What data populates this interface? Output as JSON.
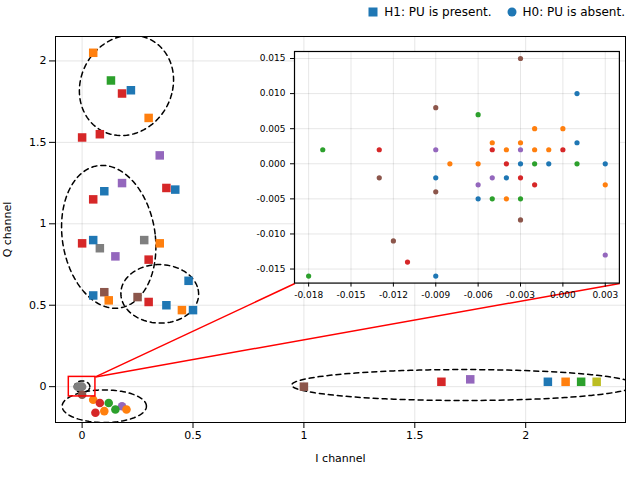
{
  "chart_data": [
    {
      "type": "scatter",
      "xlabel": "I channel",
      "ylabel": "Q channel",
      "xlim": [
        -0.12,
        2.45
      ],
      "ylim": [
        -0.22,
        2.15
      ],
      "xticks": [
        0,
        0.5,
        1,
        1.5,
        2
      ],
      "yticks": [
        0,
        0.5,
        1,
        1.5,
        2
      ],
      "grid": true,
      "legend": "upper right",
      "series": [
        {
          "name": "H1: PU is present.",
          "marker": "square",
          "color": "#1f77b4",
          "x": [
            0.05,
            0.13,
            0.18,
            0.22,
            0.3,
            0.35,
            0.38,
            0.42,
            0.48,
            0.5,
            0.28,
            0.35,
            0.3,
            0.25,
            0.3,
            0.38,
            0.45,
            0.05,
            0.1,
            0.18,
            0.08,
            0.15,
            0,
            0.05,
            0.05,
            0.1,
            0.12,
            0,
            0.08,
            1.62,
            1.75,
            2.1,
            2.18,
            2.25,
            2.32,
            1
          ],
          "values": [
            2.05,
            1.88,
            1.8,
            1.82,
            1.65,
            1.42,
            1.22,
            1.21,
            0.65,
            0.47,
            0.9,
            0.88,
            0.78,
            0.55,
            0.52,
            0.5,
            0.47,
            1.15,
            1.2,
            1.25,
            0.85,
            0.8,
            0.88,
            0.9,
            0.56,
            0.58,
            0.53,
            1.53,
            1.55,
            0.03,
            0.045,
            0.03,
            0.03,
            0.03,
            0.03,
            0
          ],
          "colors": [
            "#ff7f0e",
            "#2ca02c",
            "#d62728",
            "#1f77b4",
            "#ff7f0e",
            "#9467bd",
            "#d62728",
            "#1f77b4",
            "#1f77b4",
            "#1f77b4",
            "#7f7f7f",
            "#ff7f0e",
            "#d62728",
            "#8c564b",
            "#d62728",
            "#1f77b4",
            "#ff7f0e",
            "#d62728",
            "#1f77b4",
            "#9467bd",
            "#7f7f7f",
            "#9467bd",
            "#d62728",
            "#1f77b4",
            "#1f77b4",
            "#8c564b",
            "#ff7f0e",
            "#d62728",
            "#d62728",
            "#d62728",
            "#9467bd",
            "#1f77b4",
            "#ff7f0e",
            "#2ca02c",
            "#bcbd22",
            "#8c564b"
          ]
        },
        {
          "name": "H0: PU is absent.",
          "marker": "circle",
          "color": "#1f77b4",
          "x": [
            -0.02,
            -0.01,
            0,
            0.05,
            0.08,
            0.12,
            0.18,
            0,
            0.06,
            0.1,
            0.15,
            0.2
          ],
          "values": [
            0,
            0,
            0,
            -0.08,
            -0.1,
            -0.1,
            -0.12,
            -0.05,
            -0.16,
            -0.15,
            -0.14,
            -0.14
          ],
          "colors": [
            "#7f7f7f",
            "#7f7f7f",
            "#7f7f7f",
            "#ff7f0e",
            "#d62728",
            "#2ca02c",
            "#9467bd",
            "#8c564b",
            "#d62728",
            "#ff7f0e",
            "#2ca02c",
            "#ff7f0e"
          ]
        }
      ],
      "ellipses": [
        {
          "x": 0.2,
          "y": 1.85,
          "width": 0.42,
          "height": 0.62,
          "angle": -8,
          "line_style": "dashed"
        },
        {
          "x": 0.12,
          "y": 0.92,
          "width": 0.42,
          "height": 0.88,
          "angle": 5,
          "line_style": "dashed"
        },
        {
          "x": 0.35,
          "y": 0.57,
          "width": 0.35,
          "height": 0.36,
          "angle": 15,
          "line_style": "dashed"
        },
        {
          "x": 0.1,
          "y": -0.12,
          "width": 0.38,
          "height": 0.2,
          "angle": 0,
          "line_style": "dashed"
        },
        {
          "x": 1.72,
          "y": 0.01,
          "width": 1.55,
          "height": 0.19,
          "angle": 0,
          "line_style": "dashed"
        },
        {
          "x": 0,
          "y": 0,
          "width": 0.07,
          "height": 0.07,
          "angle": 0,
          "line_style": "dashed"
        }
      ],
      "rectangle": {
        "x": -0.06,
        "y": -0.06,
        "width": 0.12,
        "height": 0.12,
        "color": "red"
      }
    },
    {
      "type": "scatter",
      "xlim": [
        -0.019,
        0.004
      ],
      "ylim": [
        -0.017,
        0.016
      ],
      "xticks": [
        -0.018,
        -0.015,
        -0.012,
        -0.009,
        -0.006,
        -0.003,
        {
          "value": 0,
          "label": "0.000"
        },
        0.003
      ],
      "yticks": [
        -0.015,
        {
          "value": -0.01,
          "label": "-0.010"
        },
        -0.005,
        {
          "value": 0,
          "label": "0.000"
        },
        0.005,
        {
          "value": 0.01,
          "label": "0.010"
        },
        0.015
      ],
      "grid": true,
      "series": [
        {
          "marker": "circle",
          "x": [
            -0.017,
            -0.013,
            -0.013,
            -0.009,
            -0.009,
            -0.009,
            -0.008,
            -0.006,
            -0.006,
            -0.006,
            -0.005,
            -0.005,
            -0.005,
            -0.005,
            -0.004,
            -0.004,
            -0.004,
            -0.004,
            -0.003,
            -0.003,
            -0.003,
            -0.003,
            -0.003,
            -0.003,
            -0.002,
            -0.002,
            -0.002,
            -0.002,
            -0.001,
            -0.001,
            0,
            0,
            0.001,
            0.001,
            -0.009,
            -0.006,
            0.003,
            0.003,
            -0.018,
            -0.009,
            -0.003,
            0.001,
            -0.012,
            -0.011,
            0.003
          ],
          "values": [
            0.002,
            0.002,
            -0.002,
            -0.002,
            -0.004,
            0.002,
            0,
            0,
            -0.003,
            -0.005,
            0.003,
            0.002,
            -0.002,
            -0.005,
            0.002,
            0,
            -0.002,
            -0.005,
            0.003,
            0.002,
            0,
            -0.002,
            -0.005,
            -0.008,
            0.005,
            0.002,
            0,
            -0.003,
            0.002,
            0,
            0.005,
            0.002,
            0.003,
            0,
            0.008,
            0.007,
            0,
            -0.003,
            -0.016,
            -0.016,
            0.015,
            0.01,
            -0.011,
            -0.014,
            -0.013
          ],
          "colors": [
            "#2ca02c",
            "#d62728",
            "#8c564b",
            "#1f77b4",
            "#8c564b",
            "#9467bd",
            "#ff7f0e",
            "#ff7f0e",
            "#9467bd",
            "#1f77b4",
            "#ff7f0e",
            "#d62728",
            "#9467bd",
            "#2ca02c",
            "#ff7f0e",
            "#d62728",
            "#1f77b4",
            "#ff7f0e",
            "#ff7f0e",
            "#9467bd",
            "#1f77b4",
            "#d62728",
            "#2ca02c",
            "#8c564b",
            "#ff7f0e",
            "#ff7f0e",
            "#2ca02c",
            "#d62728",
            "#ff7f0e",
            "#1f77b4",
            "#ff7f0e",
            "#d62728",
            "#1f77b4",
            "#2ca02c",
            "#8c564b",
            "#2ca02c",
            "#1f77b4",
            "#ff7f0e",
            "#2ca02c",
            "#1f77b4",
            "#8c564b",
            "#1f77b4",
            "#8c564b",
            "#d62728",
            "#9467bd"
          ]
        }
      ]
    }
  ]
}
